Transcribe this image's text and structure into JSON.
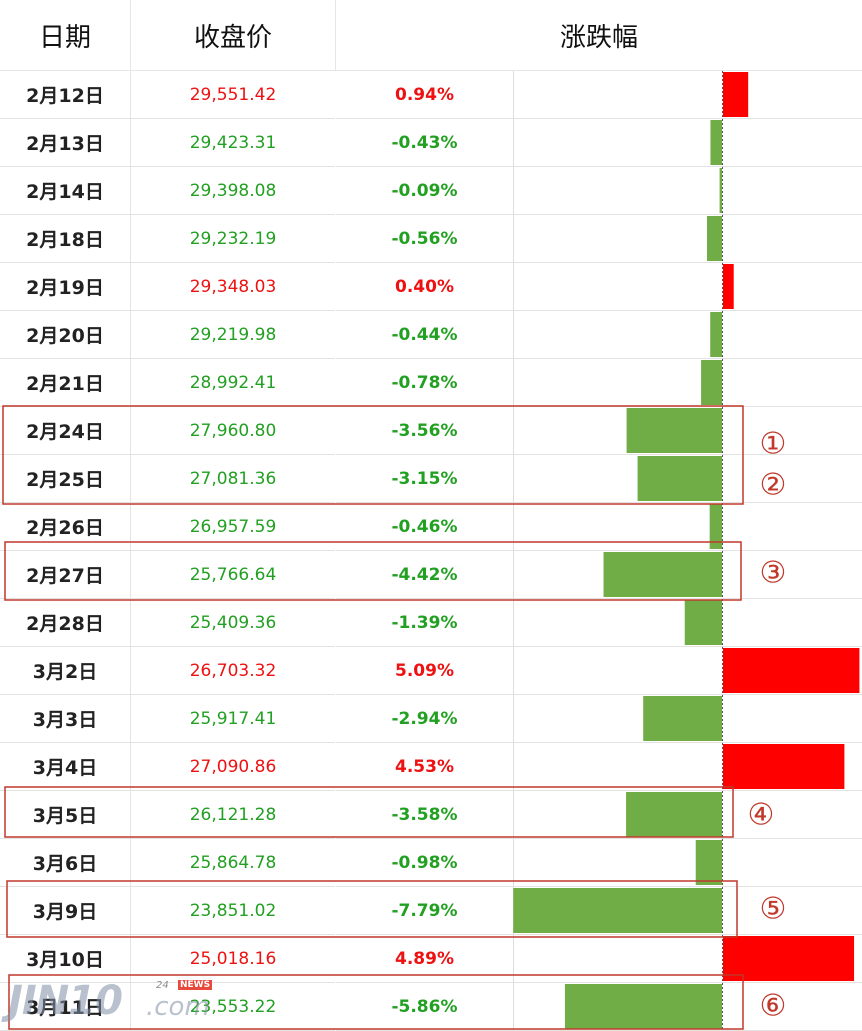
{
  "header": {
    "date": "日期",
    "close": "收盘价",
    "change": "涨跌幅"
  },
  "rows": [
    {
      "date": "2月12日",
      "close": "29,551.42",
      "change": "0.94%",
      "pct": 0.94
    },
    {
      "date": "2月13日",
      "close": "29,423.31",
      "change": "-0.43%",
      "pct": -0.43
    },
    {
      "date": "2月14日",
      "close": "29,398.08",
      "change": "-0.09%",
      "pct": -0.09
    },
    {
      "date": "2月18日",
      "close": "29,232.19",
      "change": "-0.56%",
      "pct": -0.56
    },
    {
      "date": "2月19日",
      "close": "29,348.03",
      "change": "0.40%",
      "pct": 0.4
    },
    {
      "date": "2月20日",
      "close": "29,219.98",
      "change": "-0.44%",
      "pct": -0.44
    },
    {
      "date": "2月21日",
      "close": "28,992.41",
      "change": "-0.78%",
      "pct": -0.78
    },
    {
      "date": "2月24日",
      "close": "27,960.80",
      "change": "-3.56%",
      "pct": -3.56
    },
    {
      "date": "2月25日",
      "close": "27,081.36",
      "change": "-3.15%",
      "pct": -3.15
    },
    {
      "date": "2月26日",
      "close": "26,957.59",
      "change": "-0.46%",
      "pct": -0.46
    },
    {
      "date": "2月27日",
      "close": "25,766.64",
      "change": "-4.42%",
      "pct": -4.42
    },
    {
      "date": "2月28日",
      "close": "25,409.36",
      "change": "-1.39%",
      "pct": -1.39
    },
    {
      "date": "3月2日",
      "close": "26,703.32",
      "change": "5.09%",
      "pct": 5.09
    },
    {
      "date": "3月3日",
      "close": "25,917.41",
      "change": "-2.94%",
      "pct": -2.94
    },
    {
      "date": "3月4日",
      "close": "27,090.86",
      "change": "4.53%",
      "pct": 4.53
    },
    {
      "date": "3月5日",
      "close": "26,121.28",
      "change": "-3.58%",
      "pct": -3.58
    },
    {
      "date": "3月6日",
      "close": "25,864.78",
      "change": "-0.98%",
      "pct": -0.98
    },
    {
      "date": "3月9日",
      "close": "23,851.02",
      "change": "-7.79%",
      "pct": -7.79
    },
    {
      "date": "3月10日",
      "close": "25,018.16",
      "change": "4.89%",
      "pct": 4.89
    },
    {
      "date": "3月11日",
      "close": "23,553.22",
      "change": "-5.86%",
      "pct": -5.86
    }
  ],
  "chart_data": {
    "type": "bar",
    "categories": [
      "2月12日",
      "2月13日",
      "2月14日",
      "2月18日",
      "2月19日",
      "2月20日",
      "2月21日",
      "2月24日",
      "2月25日",
      "2月26日",
      "2月27日",
      "2月28日",
      "3月2日",
      "3月3日",
      "3月4日",
      "3月5日",
      "3月6日",
      "3月9日",
      "3月10日",
      "3月11日"
    ],
    "values": [
      0.94,
      -0.43,
      -0.09,
      -0.56,
      0.4,
      -0.44,
      -0.78,
      -3.56,
      -3.15,
      -0.46,
      -4.42,
      -1.39,
      5.09,
      -2.94,
      4.53,
      -3.58,
      -0.98,
      -7.79,
      4.89,
      -5.86
    ],
    "orientation": "horizontal",
    "title": "涨跌幅",
    "colors": {
      "up": "#ff0000",
      "down": "#70ad47",
      "up_text": "#ee1111",
      "down_text": "#22a022",
      "highlight": "#c0392b"
    }
  },
  "annotations": [
    {
      "label": "①",
      "rows": [
        7,
        7
      ]
    },
    {
      "label": "②",
      "rows": [
        8,
        8
      ]
    },
    {
      "label": "③",
      "rows": [
        10,
        10
      ]
    },
    {
      "label": "④",
      "rows": [
        15,
        15
      ]
    },
    {
      "label": "⑤",
      "rows": [
        17,
        17
      ]
    },
    {
      "label": "⑥",
      "rows": [
        19,
        19
      ]
    }
  ],
  "watermark": {
    "main": "JIN10",
    "suffix": ".com",
    "tag24": "24",
    "tag_news": "NEWS"
  }
}
